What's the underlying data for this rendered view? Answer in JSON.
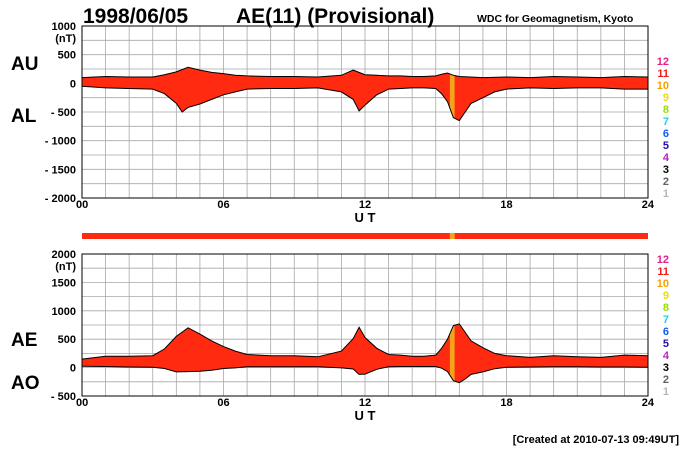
{
  "header": {
    "date": "1998/06/05",
    "title": "AE(11) (Provisional)",
    "source": "WDC for Geomagnetism, Kyoto"
  },
  "footer": {
    "created": "[Created at 2010-07-13 09:49UT]"
  },
  "colors": {
    "fill": "#ff2a10",
    "highlight": "#f5a31a",
    "grid": "#a8a8a8",
    "outline": "#000000"
  },
  "station_legend": [
    {
      "label": "12",
      "color": "#e8208a"
    },
    {
      "label": "11",
      "color": "#ee1c1c"
    },
    {
      "label": "10",
      "color": "#f5a000"
    },
    {
      "label": "9",
      "color": "#e8e000"
    },
    {
      "label": "8",
      "color": "#96e000"
    },
    {
      "label": "7",
      "color": "#20d0e8"
    },
    {
      "label": "6",
      "color": "#1060f0"
    },
    {
      "label": "5",
      "color": "#2010b0"
    },
    {
      "label": "4",
      "color": "#c020c0"
    },
    {
      "label": "3",
      "color": "#000000"
    },
    {
      "label": "2",
      "color": "#606060"
    },
    {
      "label": "1",
      "color": "#b8b8b8"
    }
  ],
  "chart_data": [
    {
      "type": "area",
      "series": [
        {
          "name": "AU",
          "values": [
            [
              0,
              100
            ],
            [
              1,
              120
            ],
            [
              2,
              110
            ],
            [
              3,
              110
            ],
            [
              3.5,
              150
            ],
            [
              4,
              200
            ],
            [
              4.5,
              280
            ],
            [
              5,
              230
            ],
            [
              5.5,
              190
            ],
            [
              6,
              170
            ],
            [
              6.5,
              140
            ],
            [
              7,
              130
            ],
            [
              8,
              120
            ],
            [
              9,
              120
            ],
            [
              10,
              110
            ],
            [
              11,
              140
            ],
            [
              11.5,
              230
            ],
            [
              12,
              150
            ],
            [
              12.5,
              140
            ],
            [
              13,
              130
            ],
            [
              13.5,
              130
            ],
            [
              14,
              120
            ],
            [
              14.5,
              120
            ],
            [
              15,
              130
            ],
            [
              15.25,
              160
            ],
            [
              15.5,
              180
            ],
            [
              15.75,
              140
            ],
            [
              16,
              120
            ],
            [
              17,
              100
            ],
            [
              18,
              110
            ],
            [
              19,
              100
            ],
            [
              20,
              120
            ],
            [
              21,
              110
            ],
            [
              22,
              100
            ],
            [
              23,
              120
            ],
            [
              24,
              110
            ]
          ]
        },
        {
          "name": "AL",
          "values": [
            [
              0,
              -50
            ],
            [
              1,
              -80
            ],
            [
              2,
              -90
            ],
            [
              3,
              -100
            ],
            [
              3.5,
              -180
            ],
            [
              4,
              -350
            ],
            [
              4.25,
              -500
            ],
            [
              4.5,
              -420
            ],
            [
              5,
              -360
            ],
            [
              5.5,
              -280
            ],
            [
              6,
              -200
            ],
            [
              6.5,
              -150
            ],
            [
              7,
              -100
            ],
            [
              8,
              -90
            ],
            [
              9,
              -90
            ],
            [
              10,
              -80
            ],
            [
              11,
              -150
            ],
            [
              11.5,
              -280
            ],
            [
              11.75,
              -480
            ],
            [
              12,
              -380
            ],
            [
              12.5,
              -200
            ],
            [
              13,
              -100
            ],
            [
              13.5,
              -90
            ],
            [
              14,
              -80
            ],
            [
              14.5,
              -80
            ],
            [
              15,
              -90
            ],
            [
              15.25,
              -180
            ],
            [
              15.5,
              -320
            ],
            [
              15.75,
              -600
            ],
            [
              16,
              -650
            ],
            [
              16.25,
              -500
            ],
            [
              16.5,
              -350
            ],
            [
              17,
              -250
            ],
            [
              17.5,
              -150
            ],
            [
              18,
              -100
            ],
            [
              19,
              -80
            ],
            [
              20,
              -90
            ],
            [
              21,
              -80
            ],
            [
              22,
              -80
            ],
            [
              23,
              -100
            ],
            [
              24,
              -100
            ]
          ]
        }
      ],
      "xlabel": "U T",
      "ylabel": "(nT)",
      "xlim": [
        0,
        24
      ],
      "ylim": [
        -2000,
        1000
      ],
      "xticks": [
        "00",
        "06",
        "12",
        "18",
        "24"
      ],
      "yticks": [
        "1000",
        "500",
        "0",
        "- 500",
        "- 1000",
        "- 1500",
        "- 2000"
      ],
      "labels": [
        "AU",
        "AL"
      ],
      "grid": true
    },
    {
      "type": "area",
      "series": [
        {
          "name": "AE",
          "values": [
            [
              0,
              150
            ],
            [
              1,
              200
            ],
            [
              2,
              200
            ],
            [
              3,
              210
            ],
            [
              3.5,
              330
            ],
            [
              4,
              550
            ],
            [
              4.5,
              700
            ],
            [
              5,
              590
            ],
            [
              5.5,
              470
            ],
            [
              6,
              370
            ],
            [
              6.5,
              290
            ],
            [
              7,
              230
            ],
            [
              8,
              210
            ],
            [
              9,
              210
            ],
            [
              10,
              190
            ],
            [
              11,
              290
            ],
            [
              11.5,
              510
            ],
            [
              11.75,
              710
            ],
            [
              12,
              530
            ],
            [
              12.5,
              340
            ],
            [
              13,
              230
            ],
            [
              13.5,
              220
            ],
            [
              14,
              200
            ],
            [
              14.5,
              200
            ],
            [
              15,
              220
            ],
            [
              15.25,
              340
            ],
            [
              15.5,
              500
            ],
            [
              15.75,
              740
            ],
            [
              16,
              770
            ],
            [
              16.25,
              620
            ],
            [
              16.5,
              470
            ],
            [
              17,
              350
            ],
            [
              17.5,
              250
            ],
            [
              18,
              210
            ],
            [
              19,
              180
            ],
            [
              20,
              210
            ],
            [
              21,
              190
            ],
            [
              22,
              180
            ],
            [
              23,
              220
            ],
            [
              24,
              210
            ]
          ]
        },
        {
          "name": "AO",
          "values": [
            [
              0,
              25
            ],
            [
              1,
              20
            ],
            [
              2,
              10
            ],
            [
              3,
              5
            ],
            [
              3.5,
              -15
            ],
            [
              4,
              -75
            ],
            [
              4.5,
              -70
            ],
            [
              5,
              -65
            ],
            [
              5.5,
              -45
            ],
            [
              6,
              -15
            ],
            [
              6.5,
              -5
            ],
            [
              7,
              15
            ],
            [
              8,
              15
            ],
            [
              9,
              15
            ],
            [
              10,
              15
            ],
            [
              11,
              -5
            ],
            [
              11.5,
              -25
            ],
            [
              11.75,
              -120
            ],
            [
              12,
              -115
            ],
            [
              12.5,
              -30
            ],
            [
              13,
              15
            ],
            [
              13.5,
              20
            ],
            [
              14,
              20
            ],
            [
              14.5,
              20
            ],
            [
              15,
              20
            ],
            [
              15.25,
              -10
            ],
            [
              15.5,
              -70
            ],
            [
              15.75,
              -230
            ],
            [
              16,
              -265
            ],
            [
              16.25,
              -200
            ],
            [
              16.5,
              -120
            ],
            [
              17,
              -75
            ],
            [
              17.5,
              -20
            ],
            [
              18,
              5
            ],
            [
              19,
              10
            ],
            [
              20,
              15
            ],
            [
              21,
              15
            ],
            [
              22,
              10
            ],
            [
              23,
              10
            ],
            [
              24,
              5
            ]
          ]
        }
      ],
      "xlabel": "U T",
      "ylabel": "(nT)",
      "xlim": [
        0,
        24
      ],
      "ylim": [
        -500,
        2000
      ],
      "xticks": [
        "00",
        "06",
        "12",
        "18",
        "24"
      ],
      "yticks": [
        "2000",
        "1500",
        "1000",
        "500",
        "0",
        "- 500"
      ],
      "labels": [
        "AE",
        "AO"
      ],
      "grid": true
    }
  ],
  "coverage_bar": {
    "segments": [
      {
        "from": 0,
        "to": 15.6,
        "stations": 11
      },
      {
        "from": 15.6,
        "to": 15.8,
        "stations": 10
      },
      {
        "from": 15.8,
        "to": 24,
        "stations": 11
      }
    ]
  },
  "highlight_band": {
    "from": 15.6,
    "to": 15.8
  }
}
